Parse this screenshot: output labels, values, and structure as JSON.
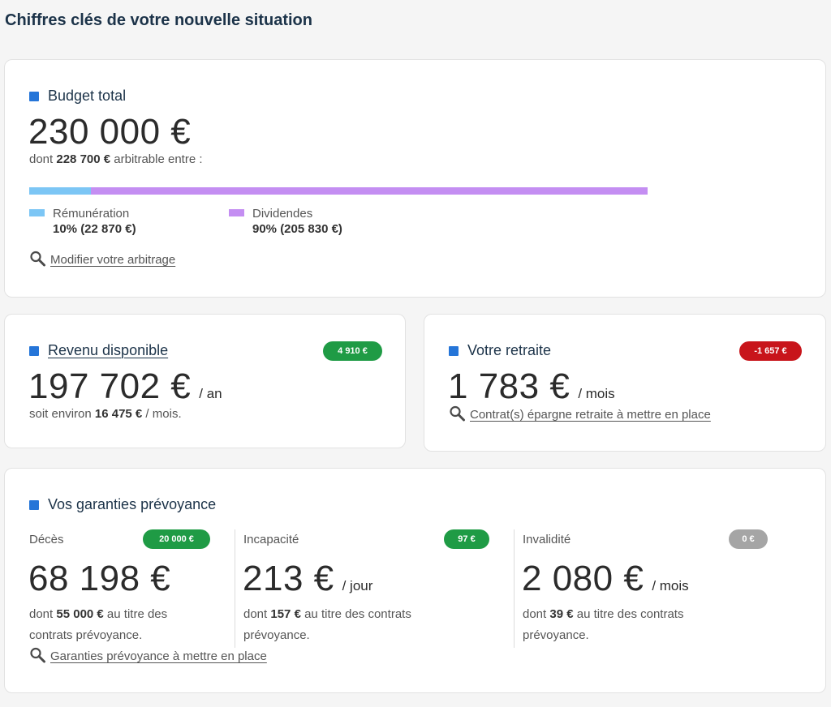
{
  "page": {
    "title": "Chiffres clés de votre nouvelle situation"
  },
  "colors": {
    "accent": "#2575d8",
    "remuneration": "#7cc6f5",
    "dividendes": "#c48ef2",
    "positive": "#1f9b45",
    "negative": "#c8151b",
    "neutral": "#a5a5a5"
  },
  "budget": {
    "title": "Budget total",
    "amount": "230 000 €",
    "sub_prefix": "dont ",
    "sub_bold": "228 700 €",
    "sub_suffix": " arbitrable entre :",
    "split": [
      {
        "name": "Rémunération",
        "percent": 10,
        "value": "10% (22 870 €)"
      },
      {
        "name": "Dividendes",
        "percent": 90,
        "value": "90% (205 830 €)"
      }
    ],
    "link": "Modifier votre arbitrage",
    "icon": "search-icon"
  },
  "revenu": {
    "title": "Revenu disponible",
    "badge": "4 910 €",
    "amount": "197 702 €",
    "unit": "/ an",
    "sub_prefix": "soit environ ",
    "sub_bold": "16 475 €",
    "sub_suffix": " / mois."
  },
  "retraite": {
    "title": "Votre retraite",
    "badge": "-1 657 €",
    "amount": "1 783 €",
    "unit": "/ mois",
    "link": "Contrat(s) épargne retraite à mettre en place"
  },
  "prevoyance": {
    "title": "Vos garanties prévoyance",
    "columns": [
      {
        "label": "Décès",
        "badge": "20 000 €",
        "amount": "68 198 €",
        "unit": "",
        "line1_prefix": "dont ",
        "line1_bold": "55 000 €",
        "line1_suffix": " au titre des",
        "line2": "contrats prévoyance."
      },
      {
        "label": "Incapacité",
        "badge": "97 €",
        "amount": "213 €",
        "unit": "/ jour",
        "line1_prefix": "dont ",
        "line1_bold": "157 €",
        "line1_suffix": " au titre des contrats",
        "line2": "prévoyance."
      },
      {
        "label": "Invalidité",
        "badge": "0 €",
        "amount": "2 080 €",
        "unit": "/ mois",
        "line1_prefix": "dont ",
        "line1_bold": "39 €",
        "line1_suffix": " au titre des contrats",
        "line2": "prévoyance."
      }
    ],
    "link": "Garanties prévoyance à mettre en place"
  }
}
